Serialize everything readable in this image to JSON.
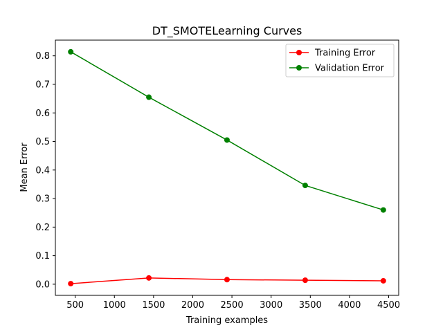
{
  "chart_data": {
    "type": "line",
    "title": "DT_SMOTELearning Curves",
    "xlabel": "Training examples",
    "ylabel": "Mean Error",
    "x": [
      443,
      1440,
      2437,
      3435,
      4432
    ],
    "series": [
      {
        "name": "Training Error",
        "color": "#ff0000",
        "values": [
          0.002,
          0.022,
          0.016,
          0.014,
          0.012
        ]
      },
      {
        "name": "Validation Error",
        "color": "#008000",
        "values": [
          0.814,
          0.655,
          0.505,
          0.346,
          0.26
        ]
      }
    ],
    "xlim": [
      247,
      4628
    ],
    "ylim": [
      -0.039,
      0.855
    ],
    "xticks": [
      500,
      1000,
      1500,
      2000,
      2500,
      3000,
      3500,
      4000,
      4500
    ],
    "yticks": [
      0.0,
      0.1,
      0.2,
      0.3,
      0.4,
      0.5,
      0.6,
      0.7,
      0.8
    ],
    "grid": false,
    "legend_position": "upper right",
    "marker": "circle"
  }
}
